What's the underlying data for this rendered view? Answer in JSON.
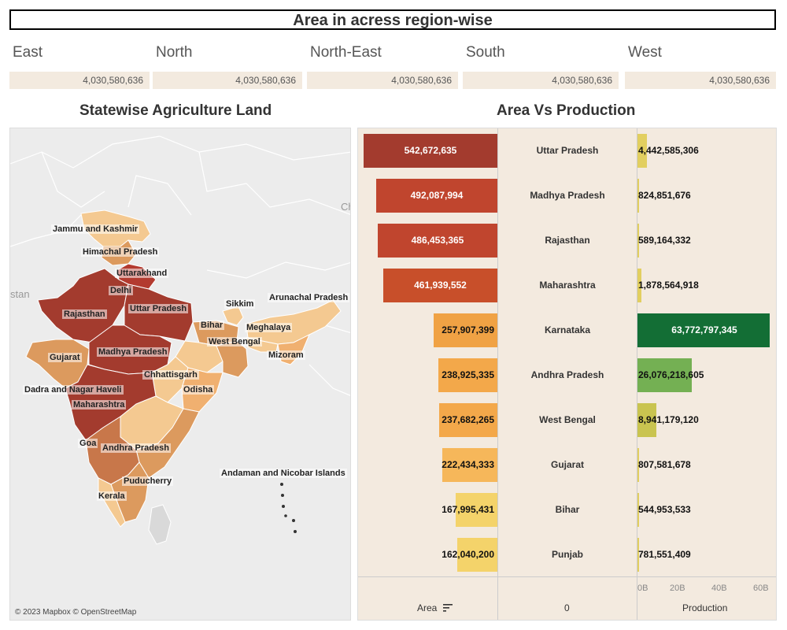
{
  "header": {
    "title": "Area in acress region-wise"
  },
  "regions": [
    {
      "name": "East",
      "value": "4,030,580,636"
    },
    {
      "name": "North",
      "value": "4,030,580,636"
    },
    {
      "name": "North-East",
      "value": "4,030,580,636"
    },
    {
      "name": "South",
      "value": "4,030,580,636"
    },
    {
      "name": "West",
      "value": "4,030,580,636"
    }
  ],
  "map": {
    "title": "Statewise Agriculture Land",
    "credit": "© 2023 Mapbox © OpenStreetMap",
    "edge_labels": {
      "ch": "Ch",
      "stan": "stan"
    },
    "labels": [
      "Jammu and Kashmir",
      "Himachal Pradesh",
      "Uttarakhand",
      "Delhi",
      "Uttar Pradesh",
      "Rajasthan",
      "Sikkim",
      "Arunachal Pradesh",
      "Bihar",
      "Meghalaya",
      "West Bengal",
      "Mizoram",
      "Gujarat",
      "Madhya Pradesh",
      "Chhattisgarh",
      "Odisha",
      "Dadra and Nagar Haveli",
      "Maharashtra",
      "Goa",
      "Andhra Pradesh",
      "Puducherry",
      "Andaman and Nicobar Islands",
      "Kerala"
    ]
  },
  "chart": {
    "title": "Area Vs Production",
    "footer": {
      "area_label": "Area",
      "middle_label": "0",
      "production_label": "Production"
    },
    "axis_ticks": [
      "0B",
      "20B",
      "40B",
      "60B"
    ]
  },
  "chart_data": {
    "type": "bar",
    "categories": [
      "Uttar Pradesh",
      "Madhya Pradesh",
      "Rajasthan",
      "Maharashtra",
      "Karnataka",
      "Andhra Pradesh",
      "West Bengal",
      "Gujarat",
      "Bihar",
      "Punjab"
    ],
    "series": [
      {
        "name": "Area",
        "values": [
          542672635,
          492087994,
          486453365,
          461939552,
          257907399,
          238925335,
          237682265,
          222434333,
          167995431,
          162040200
        ],
        "labels": [
          "542,672,635",
          "492,087,994",
          "486,453,365",
          "461,939,552",
          "257,907,399",
          "238,925,335",
          "237,682,265",
          "222,434,333",
          "167,995,431",
          "162,040,200"
        ]
      },
      {
        "name": "Production",
        "values": [
          4442585306,
          824851676,
          589164332,
          1878564918,
          63772797345,
          26076218605,
          8941179120,
          807581678,
          544953533,
          781551409
        ],
        "labels": [
          "4,442,585,306",
          "824,851,676",
          "589,164,332",
          "1,878,564,918",
          "63,772,797,345",
          "26,076,218,605",
          "8,941,179,120",
          "807,581,678",
          "544,953,533",
          "781,551,409"
        ]
      }
    ],
    "production_axis": {
      "min": 0,
      "max": 60000000000
    },
    "colors": {
      "area": [
        "#a33b2e",
        "#c0452e",
        "#c0452e",
        "#c84f2a",
        "#f0a244",
        "#f3a84a",
        "#f3a84a",
        "#f6b75a",
        "#f4d36a",
        "#f4d36a"
      ],
      "production": [
        "#e2cf60",
        "#e2cf60",
        "#e2cf60",
        "#e2cf60",
        "#136e35",
        "#74b053",
        "#c9c450",
        "#e2cf60",
        "#e2cf60",
        "#e2cf60"
      ],
      "area_text": [
        "#ffffff",
        "#ffffff",
        "#ffffff",
        "#ffffff",
        "#111111",
        "#111111",
        "#111111",
        "#111111",
        "#111111",
        "#111111"
      ],
      "production_text": [
        "#111111",
        "#111111",
        "#111111",
        "#111111",
        "#ffffff",
        "#111111",
        "#111111",
        "#111111",
        "#111111",
        "#111111"
      ]
    }
  }
}
